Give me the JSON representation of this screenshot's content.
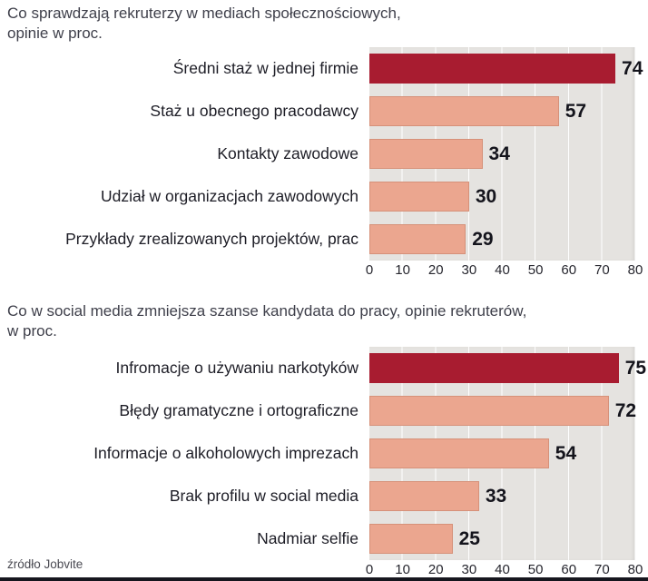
{
  "colors": {
    "highlight": "#a81c30",
    "bar": "#eba68f",
    "plot_bg": "#e5e3e0",
    "accent_strip": "#16161e"
  },
  "source": "źródło Jobvite",
  "chart_data": [
    {
      "type": "bar",
      "orientation": "horizontal",
      "title": "Co sprawdzają rekruterzy w mediach społecznościowych,\nopinie w proc.",
      "categories": [
        "Średni staż w jednej firmie",
        "Staż u obecnego pracodawcy",
        "Kontakty zawodowe",
        "Udział w organizacjach zawodowych",
        "Przykłady zrealizowanych projektów, prac"
      ],
      "values": [
        74,
        57,
        34,
        30,
        29
      ],
      "xlim": [
        0,
        80
      ],
      "xticks": [
        0,
        10,
        20,
        30,
        40,
        50,
        60,
        70,
        80
      ],
      "highlight_index": 0,
      "grid": "vertical-white-lines",
      "legend_position": "none"
    },
    {
      "type": "bar",
      "orientation": "horizontal",
      "title": "Co w social media zmniejsza szanse kandydata do pracy, opinie rekruterów,\nw proc.",
      "categories": [
        "Infromacje o używaniu narkotyków",
        "Błędy gramatyczne i ortograficzne",
        "Informacje o alkoholowych imprezach",
        "Brak profilu w social media",
        "Nadmiar selfie"
      ],
      "values": [
        75,
        72,
        54,
        33,
        25
      ],
      "xlim": [
        0,
        80
      ],
      "xticks": [
        0,
        10,
        20,
        30,
        40,
        50,
        60,
        70,
        80
      ],
      "highlight_index": 0,
      "grid": "vertical-white-lines",
      "legend_position": "none"
    }
  ]
}
